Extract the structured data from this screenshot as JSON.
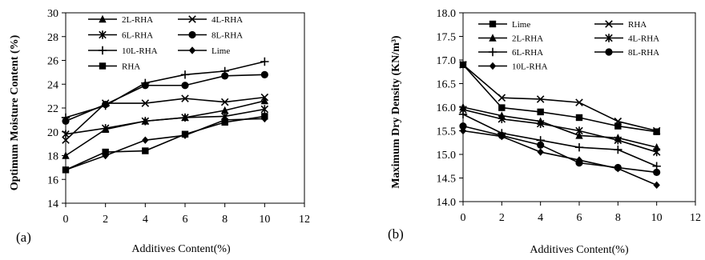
{
  "chart_data": [
    {
      "type": "line",
      "panel_label": "(a)",
      "xlabel": "Additives Content(%)",
      "ylabel": "Optimum  Moisture Content (%)",
      "xlim": [
        0,
        12
      ],
      "ylim": [
        14,
        30
      ],
      "xticks": [
        0,
        2,
        4,
        6,
        8,
        10,
        12
      ],
      "yticks": [
        14,
        16,
        18,
        20,
        22,
        24,
        26,
        28,
        30
      ],
      "grid": false,
      "legend_position": "top-left",
      "series": [
        {
          "name": "2L-RHA",
          "marker": "triangle",
          "x": [
            0,
            2,
            4,
            6,
            8,
            10
          ],
          "values": [
            18.0,
            20.2,
            20.9,
            21.2,
            21.8,
            22.6
          ]
        },
        {
          "name": "4L-RHA",
          "marker": "x",
          "x": [
            0,
            2,
            4,
            6,
            8,
            10
          ],
          "values": [
            19.3,
            22.4,
            22.4,
            22.8,
            22.5,
            22.9
          ]
        },
        {
          "name": "6L-RHA",
          "marker": "star",
          "x": [
            0,
            2,
            4,
            6,
            8,
            10
          ],
          "values": [
            19.8,
            20.3,
            20.9,
            21.2,
            21.3,
            21.9
          ]
        },
        {
          "name": "8L-RHA",
          "marker": "circle",
          "x": [
            0,
            2,
            4,
            6,
            8,
            10
          ],
          "values": [
            20.9,
            22.3,
            23.9,
            23.9,
            24.7,
            24.8
          ]
        },
        {
          "name": "10L-RHA",
          "marker": "plus",
          "x": [
            0,
            2,
            4,
            6,
            8,
            10
          ],
          "values": [
            21.2,
            22.2,
            24.1,
            24.8,
            25.1,
            25.9
          ]
        },
        {
          "name": "Lime",
          "marker": "diamond",
          "x": [
            0,
            2,
            4,
            6,
            8,
            10
          ],
          "values": [
            16.8,
            18.0,
            19.3,
            19.7,
            21.0,
            21.1
          ]
        },
        {
          "name": "RHA",
          "marker": "square",
          "x": [
            0,
            2,
            4,
            6,
            8,
            10
          ],
          "values": [
            16.8,
            18.3,
            18.4,
            19.8,
            20.8,
            21.3
          ]
        }
      ]
    },
    {
      "type": "line",
      "panel_label": "(b)",
      "xlabel": "Additives Content(%)",
      "ylabel": "Maximum  Dry Density (KN/m³)",
      "xlim": [
        0,
        12
      ],
      "ylim": [
        14.0,
        18.0
      ],
      "xticks": [
        0,
        2,
        4,
        6,
        8,
        10,
        12
      ],
      "yticks": [
        "14.0",
        "14.5",
        "15.0",
        "15.5",
        "16.0",
        "16.5",
        "17.0",
        "17.5",
        "18.0"
      ],
      "grid": false,
      "legend_position": "top-left",
      "series": [
        {
          "name": "Lime",
          "marker": "square",
          "x": [
            0,
            2,
            4,
            6,
            8,
            10
          ],
          "values": [
            16.9,
            15.99,
            15.9,
            15.78,
            15.6,
            15.48
          ]
        },
        {
          "name": "RHA",
          "marker": "x",
          "x": [
            0,
            2,
            4,
            6,
            8,
            10
          ],
          "values": [
            16.9,
            16.2,
            16.17,
            16.1,
            15.7,
            15.5
          ]
        },
        {
          "name": "2L-RHA",
          "marker": "triangle",
          "x": [
            0,
            2,
            4,
            6,
            8,
            10
          ],
          "values": [
            16.0,
            15.82,
            15.7,
            15.4,
            15.35,
            15.15
          ]
        },
        {
          "name": "4L-RHA",
          "marker": "star",
          "x": [
            0,
            2,
            4,
            6,
            8,
            10
          ],
          "values": [
            15.95,
            15.75,
            15.65,
            15.5,
            15.3,
            15.05
          ]
        },
        {
          "name": "6L-RHA",
          "marker": "plus",
          "x": [
            0,
            2,
            4,
            6,
            8,
            10
          ],
          "values": [
            15.85,
            15.45,
            15.3,
            15.15,
            15.1,
            14.75
          ]
        },
        {
          "name": "8L-RHA",
          "marker": "circle",
          "x": [
            0,
            2,
            4,
            6,
            8,
            10
          ],
          "values": [
            15.6,
            15.4,
            15.2,
            14.82,
            14.72,
            14.62
          ]
        },
        {
          "name": "10L-RHA",
          "marker": "diamond",
          "x": [
            0,
            2,
            4,
            6,
            8,
            10
          ],
          "values": [
            15.5,
            15.38,
            15.05,
            14.88,
            14.7,
            14.35
          ]
        }
      ]
    }
  ]
}
